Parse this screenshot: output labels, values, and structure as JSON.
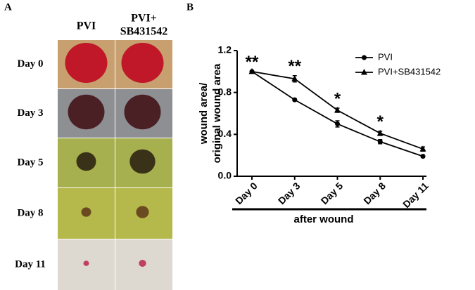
{
  "panel_a": {
    "label": "A",
    "columns": [
      [
        "PVI"
      ],
      [
        "PVI+",
        "SB431542"
      ]
    ],
    "rows": [
      "Day 0",
      "Day 3",
      "Day 5",
      "Day 8",
      "Day 11"
    ]
  },
  "chart_data": {
    "type": "line",
    "label": "B",
    "y_label": [
      "wound area/",
      "original wound area"
    ],
    "x_label": "after wound",
    "categories": [
      "Day 0",
      "Day 3",
      "Day 5",
      "Day 8",
      "Day 11"
    ],
    "series": [
      {
        "name": "PVI",
        "color": "#000000",
        "marker": "circle",
        "values": [
          1.0,
          0.73,
          0.5,
          0.33,
          0.19
        ],
        "errors": [
          0,
          0.01,
          0.03,
          0.02,
          0.01
        ]
      },
      {
        "name": "PVI+SB431542",
        "color": "#000000",
        "marker": "triangle",
        "values": [
          1.0,
          0.93,
          0.63,
          0.41,
          0.26
        ],
        "errors": [
          0,
          0.03,
          0.02,
          0.02,
          0.02
        ]
      }
    ],
    "annotations": [
      "**",
      "**",
      "*",
      "*",
      null
    ],
    "ylim": [
      0,
      1.2
    ],
    "yticks": [
      {
        "value": 0,
        "label": "0.0"
      },
      0.4,
      0.8,
      1.2
    ],
    "legend": "upper right"
  }
}
